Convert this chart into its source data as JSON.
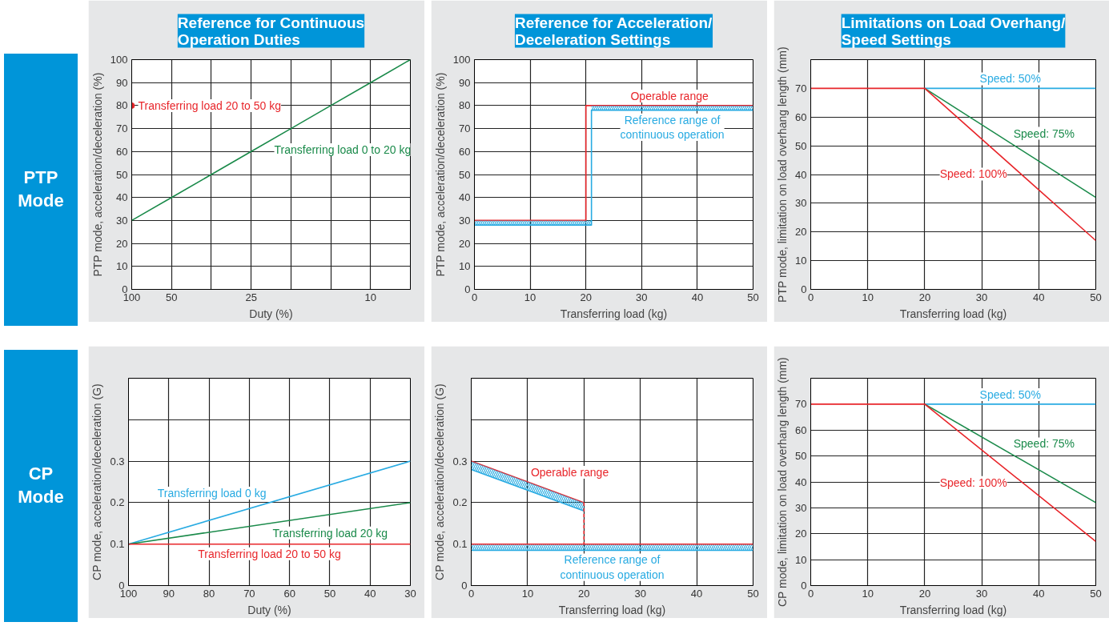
{
  "chart_data": [
    {
      "type": "line",
      "title": "Reference for Continuous\nOperation Duties",
      "xlabel": "Duty (%)",
      "ylabel": "PTP mode, acceleration/deceleration (%)",
      "grid": true,
      "categories": [
        "100",
        "50",
        null,
        "25",
        null,
        null,
        "10",
        null
      ],
      "ylim": [
        0,
        100
      ],
      "yticks": [
        0,
        10,
        20,
        30,
        40,
        50,
        60,
        70,
        80,
        90,
        100
      ],
      "series": [
        {
          "color": "#e8262b",
          "marker": "circle",
          "values": [
            80,
            null,
            null,
            null,
            null,
            null,
            null,
            null
          ]
        },
        {
          "color": "#1a8a4a",
          "values": [
            30,
            40,
            50,
            60,
            70,
            80,
            90,
            100
          ]
        }
      ],
      "annotations": [
        "Transferring load 20 to 50 kg",
        "Transferring load 0 to 20 kg",
        "PTP\nMode"
      ]
    },
    {
      "type": "line",
      "title": "Reference for Acceleration/\nDeceleration Settings",
      "xlabel": "Transferring load (kg)",
      "ylabel": "PTP mode, acceleration/deceleration (%)",
      "grid": true,
      "xlim": [
        0,
        50
      ],
      "xticks": [
        0,
        10,
        20,
        30,
        40,
        50
      ],
      "ylim": [
        0,
        100
      ],
      "yticks": [
        0,
        10,
        20,
        30,
        40,
        50,
        60,
        70,
        80,
        90,
        100
      ],
      "series": [
        {
          "color": "#e8262b",
          "x": [
            0,
            20,
            20,
            50
          ],
          "values": [
            30,
            30,
            80,
            80
          ]
        },
        {
          "color": "#29abe2",
          "x": [
            0,
            21,
            21,
            50
          ],
          "values": [
            28,
            28,
            78,
            78
          ],
          "lower": [
            28,
            28,
            78,
            78
          ],
          "upper": [
            30,
            30,
            80,
            80
          ]
        }
      ],
      "annotations": [
        "Operable range",
        "Reference range of\ncontinuous operation"
      ]
    },
    {
      "type": "line",
      "title": "Limitations on Load Overhang/\nSpeed Settings",
      "xlabel": "Transferring load (kg)",
      "ylabel": "PTP mode, limitation on load overhang length (mm)",
      "grid": true,
      "xlim": [
        0,
        50
      ],
      "xticks": [
        0,
        10,
        20,
        30,
        40,
        50
      ],
      "ylim": [
        0,
        80
      ],
      "yticks": [
        0,
        10,
        20,
        30,
        40,
        50,
        60,
        70
      ],
      "series": [
        {
          "color": "#29abe2",
          "x": [
            20,
            50
          ],
          "values": [
            70,
            70
          ]
        },
        {
          "color": "#1a8a4a",
          "x": [
            20,
            50
          ],
          "values": [
            70,
            32
          ]
        },
        {
          "color": "#e8262b",
          "x": [
            0,
            20,
            50
          ],
          "values": [
            70,
            70,
            17
          ]
        }
      ],
      "annotations": [
        "Speed: 50%",
        "Speed: 75%",
        "Speed: 100%"
      ]
    },
    {
      "type": "line",
      "xlabel": "Duty (%)",
      "ylabel": "CP mode, acceleration/deceleration (G)",
      "grid": true,
      "xlim": [
        100,
        30
      ],
      "xticks": [
        100,
        90,
        80,
        70,
        60,
        50,
        40,
        30
      ],
      "ylim": [
        0,
        0.5
      ],
      "yticks": [
        0,
        0.1,
        0.2,
        0.3,
        {
          "value": 0.4,
          "label": null
        }
      ],
      "series": [
        {
          "color": "#29abe2",
          "x": [
            100,
            30
          ],
          "values": [
            0.1,
            0.3
          ]
        },
        {
          "color": "#1a8a4a",
          "x": [
            100,
            30
          ],
          "values": [
            0.1,
            0.2
          ]
        },
        {
          "color": "#e8262b",
          "x": [
            100,
            30
          ],
          "values": [
            0.1,
            0.1
          ]
        }
      ],
      "annotations": [
        "Transferring load 0 kg",
        "Transferring load 20 kg",
        "Transferring load 20 to 50 kg",
        "CP\nMode"
      ]
    },
    {
      "type": "line",
      "xlabel": "Transferring load (kg)",
      "ylabel": "CP mode, acceleration/deceleration (G)",
      "grid": true,
      "xlim": [
        0,
        50
      ],
      "xticks": [
        0,
        10,
        20,
        30,
        40,
        50
      ],
      "ylim": [
        0,
        0.5
      ],
      "yticks": [
        0,
        0.1,
        0.2,
        0.3,
        {
          "value": 0.4,
          "label": null
        }
      ],
      "series": [
        {
          "color": "#e8262b",
          "x": [
            0,
            20
          ],
          "values": [
            0.3,
            0.2
          ]
        },
        {
          "color": "#29abe2",
          "x": [
            0,
            50
          ],
          "values": [
            0.085,
            0.085
          ],
          "lower": [
            0.085,
            0.085
          ],
          "upper": [
            0.1,
            0.1
          ]
        },
        {
          "color": "#e8262b",
          "x": [
            0,
            50
          ],
          "values": [
            0.1,
            0.1
          ]
        },
        {
          "color": "#29abe2",
          "x": [
            0,
            20
          ],
          "values": [
            0.28,
            0.18
          ],
          "lower": [
            0.28,
            0.18
          ],
          "upper": [
            0.3,
            0.2
          ]
        },
        {
          "color": "#e8262b",
          "x": [
            20,
            20
          ],
          "values": [
            0.2,
            0.1
          ],
          "line_style": "dashed"
        }
      ],
      "annotations": [
        "Operable range",
        "Reference range of\ncontinuous operation"
      ]
    },
    {
      "type": "line",
      "xlabel": "Transferring load (kg)",
      "ylabel": "CP mode, limitation on load overhang length (mm)",
      "grid": true,
      "xlim": [
        0,
        50
      ],
      "xticks": [
        0,
        10,
        20,
        30,
        40,
        50
      ],
      "ylim": [
        0,
        80
      ],
      "yticks": [
        0,
        10,
        20,
        30,
        40,
        50,
        60,
        70
      ],
      "series": [
        {
          "color": "#29abe2",
          "x": [
            20,
            50
          ],
          "values": [
            70,
            70
          ]
        },
        {
          "color": "#1a8a4a",
          "x": [
            20,
            50
          ],
          "values": [
            70,
            32
          ]
        },
        {
          "color": "#e8262b",
          "x": [
            0,
            20,
            50
          ],
          "values": [
            70,
            70,
            17
          ]
        }
      ],
      "annotations": [
        "Speed: 50%",
        "Speed: 75%",
        "Speed: 100%"
      ]
    }
  ]
}
